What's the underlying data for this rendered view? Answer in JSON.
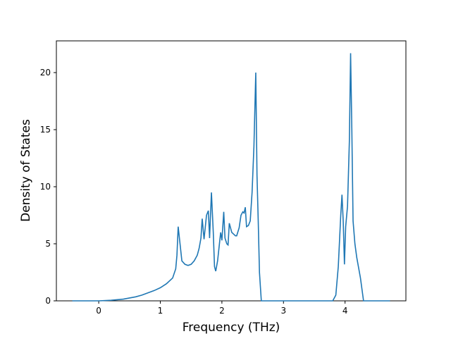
{
  "chart_data": {
    "type": "line",
    "x_label": "Frequency (THz)",
    "y_label": "Density of States",
    "xlim": [
      -0.688,
      4.988
    ],
    "ylim": [
      0,
      22.78
    ],
    "xticks": [
      0,
      1,
      2,
      3,
      4
    ],
    "yticks": [
      0,
      5,
      10,
      15,
      20
    ],
    "series": [
      {
        "color": "#1f77b4",
        "x": [
          -0.43,
          -0.2,
          0,
          0.2,
          0.4,
          0.5,
          0.6,
          0.7,
          0.8,
          0.9,
          1.0,
          1.1,
          1.2,
          1.25,
          1.27,
          1.29,
          1.32,
          1.35,
          1.4,
          1.45,
          1.5,
          1.55,
          1.6,
          1.63,
          1.66,
          1.68,
          1.71,
          1.75,
          1.78,
          1.8,
          1.83,
          1.86,
          1.88,
          1.9,
          1.93,
          1.96,
          1.98,
          2.0,
          2.03,
          2.05,
          2.08,
          2.1,
          2.12,
          2.16,
          2.22,
          2.24,
          2.28,
          2.31,
          2.34,
          2.36,
          2.38,
          2.4,
          2.43,
          2.46,
          2.49,
          2.52,
          2.55,
          2.57,
          2.59,
          2.61,
          2.64,
          3.0,
          3.5,
          3.8,
          3.85,
          3.89,
          3.93,
          3.95,
          3.97,
          3.99,
          4.01,
          4.04,
          4.07,
          4.09,
          4.11,
          4.13,
          4.16,
          4.19,
          4.25,
          4.3,
          4.73
        ],
        "values": [
          0,
          0,
          0,
          0.05,
          0.15,
          0.25,
          0.35,
          0.5,
          0.7,
          0.9,
          1.15,
          1.5,
          2.0,
          2.8,
          4.0,
          6.5,
          5.0,
          3.5,
          3.2,
          3.1,
          3.2,
          3.5,
          4.0,
          4.6,
          5.5,
          7.2,
          5.4,
          7.5,
          7.9,
          5.5,
          9.5,
          6.0,
          3.0,
          2.6,
          3.5,
          5.0,
          6.0,
          5.3,
          7.8,
          5.5,
          5.0,
          4.9,
          6.8,
          6.0,
          5.7,
          5.7,
          6.4,
          7.5,
          7.8,
          7.7,
          8.2,
          6.5,
          6.6,
          7.0,
          9.5,
          13.5,
          20.0,
          11.0,
          7.0,
          2.5,
          0,
          0,
          0,
          0,
          0.5,
          3.0,
          7.5,
          9.3,
          7.0,
          3.2,
          6.5,
          8.3,
          14.0,
          21.7,
          15.0,
          7.0,
          5.0,
          3.8,
          2.0,
          0,
          0
        ]
      }
    ]
  }
}
